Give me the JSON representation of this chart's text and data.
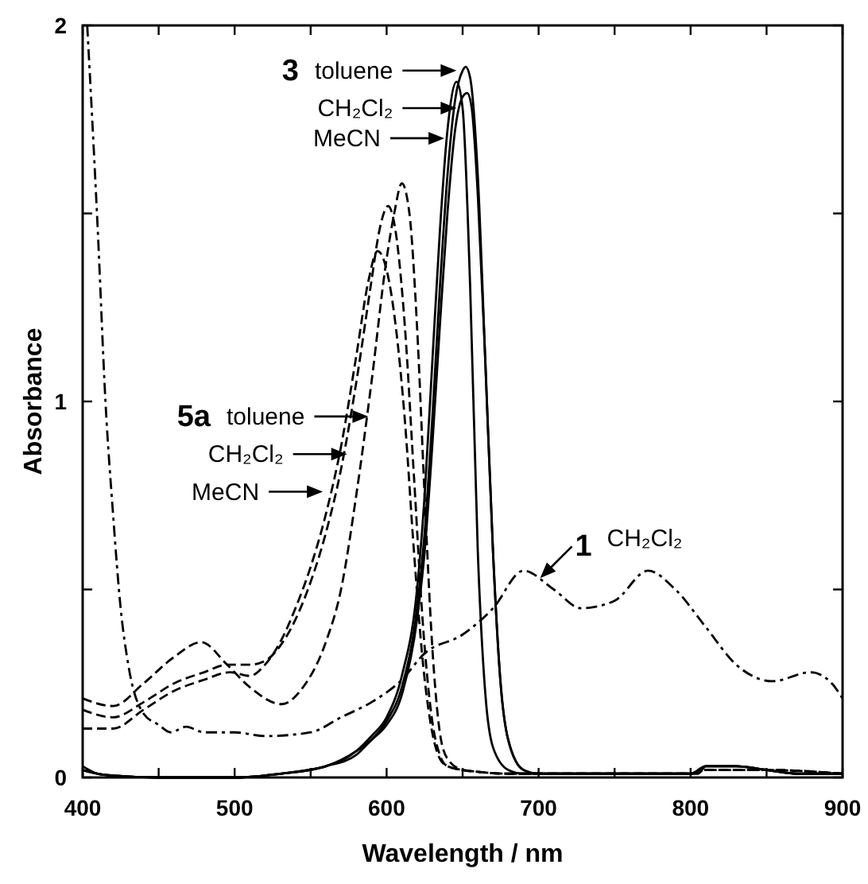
{
  "chart_data": {
    "type": "line",
    "xlabel": "Wavelength / nm",
    "ylabel": "Absorbance",
    "xlim": [
      400,
      900
    ],
    "ylim": [
      0,
      2
    ],
    "xticks": [
      400,
      {
        "value": 450,
        "label": null
      },
      500,
      {
        "value": 550,
        "label": null
      },
      600,
      {
        "value": 650,
        "label": null
      },
      700,
      {
        "value": 750,
        "label": null
      },
      800,
      {
        "value": 850,
        "label": null
      },
      900
    ],
    "yticks": [
      0,
      {
        "value": 0.5,
        "label": null
      },
      1,
      {
        "value": 1.5,
        "label": null
      },
      2
    ],
    "grid": false,
    "marker": "none",
    "series": [
      {
        "color": "#000000",
        "line_style": "solid",
        "x": [
          400,
          410,
          420,
          450,
          500,
          530,
          560,
          580,
          590,
          600,
          610,
          620,
          625,
          630,
          635,
          640,
          645,
          650,
          652,
          655,
          660,
          665,
          670,
          675,
          680,
          690,
          700,
          750,
          800,
          805,
          810,
          830,
          850,
          870,
          900
        ],
        "values": [
          0.02,
          0.01,
          0.005,
          0,
          0,
          0.01,
          0.03,
          0.07,
          0.1,
          0.15,
          0.24,
          0.45,
          0.65,
          0.95,
          1.3,
          1.6,
          1.8,
          1.88,
          1.89,
          1.86,
          1.6,
          1.1,
          0.6,
          0.25,
          0.1,
          0.02,
          0.01,
          0.01,
          0.01,
          0.01,
          0.03,
          0.03,
          0.02,
          0.01,
          0.01
        ]
      },
      {
        "color": "#000000",
        "line_style": "solid",
        "x": [
          400,
          410,
          420,
          450,
          500,
          530,
          560,
          580,
          590,
          600,
          610,
          620,
          625,
          630,
          635,
          640,
          646,
          650,
          655,
          660,
          665,
          670,
          680,
          690,
          700,
          750,
          800,
          810,
          830,
          850,
          870,
          900
        ],
        "values": [
          0.02,
          0.01,
          0.005,
          0,
          0,
          0.01,
          0.03,
          0.07,
          0.11,
          0.16,
          0.27,
          0.5,
          0.75,
          1.1,
          1.45,
          1.72,
          1.85,
          1.78,
          1.3,
          0.6,
          0.22,
          0.08,
          0.02,
          0.01,
          0.01,
          0.01,
          0.01,
          0.03,
          0.03,
          0.02,
          0.01,
          0.01
        ]
      },
      {
        "color": "#000000",
        "line_style": "solid",
        "x": [
          400,
          410,
          420,
          450,
          500,
          530,
          560,
          580,
          590,
          600,
          610,
          620,
          625,
          630,
          635,
          640,
          645,
          650,
          653,
          656,
          660,
          665,
          670,
          675,
          680,
          690,
          700,
          750,
          800,
          810,
          830,
          850,
          870,
          900
        ],
        "values": [
          0.03,
          0.01,
          0.005,
          0,
          0,
          0.01,
          0.03,
          0.06,
          0.1,
          0.14,
          0.22,
          0.42,
          0.6,
          0.88,
          1.2,
          1.5,
          1.72,
          1.81,
          1.82,
          1.78,
          1.55,
          1.1,
          0.6,
          0.25,
          0.1,
          0.02,
          0.01,
          0.01,
          0.01,
          0.03,
          0.03,
          0.02,
          0.01,
          0.01
        ]
      },
      {
        "color": "#000000",
        "line_style": "dashed",
        "x": [
          400,
          420,
          440,
          460,
          478,
          495,
          510,
          531,
          545,
          560,
          570,
          580,
          590,
          600,
          605,
          610,
          615,
          620,
          625,
          630,
          635,
          640,
          650,
          660,
          680,
          700,
          750,
          800,
          810,
          850,
          900
        ],
        "values": [
          0.21,
          0.19,
          0.25,
          0.32,
          0.36,
          0.3,
          0.24,
          0.195,
          0.24,
          0.36,
          0.5,
          0.75,
          1.05,
          1.38,
          1.5,
          1.58,
          1.5,
          1.2,
          0.75,
          0.35,
          0.12,
          0.05,
          0.02,
          0.015,
          0.01,
          0.01,
          0.01,
          0.01,
          0.02,
          0.02,
          0.01
        ]
      },
      {
        "color": "#000000",
        "line_style": "dashed",
        "x": [
          400,
          420,
          440,
          460,
          480,
          495,
          510,
          520,
          530,
          540,
          550,
          560,
          570,
          580,
          590,
          595,
          601,
          606,
          612,
          618,
          624,
          630,
          635,
          640,
          650,
          660,
          680,
          700,
          750,
          800,
          810,
          850,
          900
        ],
        "values": [
          0.18,
          0.16,
          0.2,
          0.25,
          0.28,
          0.3,
          0.3,
          0.31,
          0.35,
          0.42,
          0.52,
          0.65,
          0.82,
          1.05,
          1.32,
          1.45,
          1.52,
          1.45,
          1.2,
          0.8,
          0.4,
          0.15,
          0.06,
          0.03,
          0.02,
          0.015,
          0.01,
          0.01,
          0.01,
          0.01,
          0.02,
          0.02,
          0.01
        ]
      },
      {
        "color": "#000000",
        "line_style": "dashed",
        "x": [
          400,
          420,
          440,
          460,
          480,
          497,
          510,
          520,
          530,
          540,
          550,
          560,
          570,
          580,
          588,
          594,
          600,
          606,
          612,
          618,
          624,
          630,
          635,
          640,
          650,
          660,
          680,
          700,
          750,
          800,
          810,
          850,
          900
        ],
        "values": [
          0.13,
          0.13,
          0.18,
          0.23,
          0.26,
          0.28,
          0.27,
          0.3,
          0.36,
          0.45,
          0.56,
          0.7,
          0.88,
          1.12,
          1.32,
          1.4,
          1.35,
          1.2,
          0.95,
          0.6,
          0.3,
          0.12,
          0.05,
          0.03,
          0.02,
          0.015,
          0.01,
          0.01,
          0.01,
          0.01,
          0.02,
          0.02,
          0.01
        ]
      },
      {
        "color": "#000000",
        "line_style": "dashdot",
        "x": [
          403,
          410,
          415,
          420,
          425,
          430,
          440,
          450,
          458,
          468,
          480,
          490,
          500,
          520,
          550,
          570,
          590,
          610,
          625,
          650,
          670,
          690,
          710,
          728,
          750,
          772,
          790,
          810,
          830,
          854,
          879,
          893,
          900
        ],
        "values": [
          2.0,
          1.45,
          1.0,
          0.7,
          0.45,
          0.3,
          0.17,
          0.14,
          0.12,
          0.135,
          0.12,
          0.12,
          0.12,
          0.11,
          0.12,
          0.16,
          0.2,
          0.26,
          0.33,
          0.38,
          0.45,
          0.55,
          0.5,
          0.45,
          0.47,
          0.55,
          0.5,
          0.4,
          0.3,
          0.256,
          0.28,
          0.25,
          0.21
        ]
      }
    ],
    "annotations": [
      "3",
      {
        "text": "toluene",
        "x": 646,
        "y": 1.88
      },
      {
        "text": "CH₂Cl₂",
        "x": 646,
        "y": 1.78
      },
      {
        "text": "MeCN",
        "x": 638,
        "y": 1.7
      },
      "5a",
      {
        "text": "toluene",
        "x": 588,
        "y": 0.96
      },
      {
        "text": "CH₂Cl₂",
        "x": 574,
        "y": 0.86
      },
      {
        "text": "MeCN",
        "x": 558,
        "y": 0.76
      },
      "1",
      {
        "text": "CH₂Cl₂",
        "x": 701,
        "y": 0.53
      }
    ]
  }
}
